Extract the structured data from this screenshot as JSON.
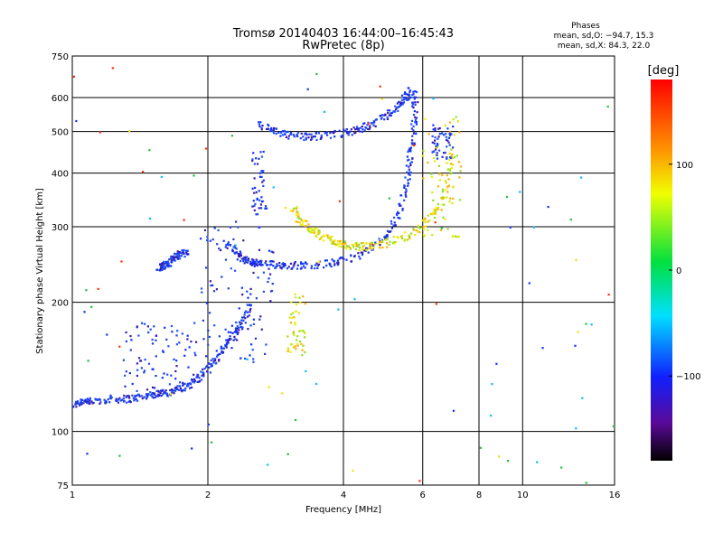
{
  "chart_data": {
    "type": "scatter",
    "title": "Tromsø 20140403 16:44:00–16:45:43",
    "subtitle": "RwPretec (8p)",
    "xlabel": "Frequency [MHz]",
    "ylabel": "Stationary phase Virtual Height [km]",
    "x_scale": "log",
    "y_scale": "log",
    "xlim": [
      1,
      16
    ],
    "ylim": [
      75,
      750
    ],
    "x_ticks": [
      1,
      2,
      4,
      6,
      8,
      10,
      16
    ],
    "x_tick_labels": [
      "1",
      "2",
      "4",
      "6",
      "8",
      "10",
      "16"
    ],
    "y_ticks": [
      75,
      100,
      200,
      300,
      400,
      500,
      600,
      750
    ],
    "y_tick_labels": [
      "75",
      "100",
      "200",
      "300",
      "400",
      "500",
      "600",
      "750"
    ],
    "grid": true,
    "phase_box": {
      "title": "Phases",
      "line_o": "mean, sd,O: −94.7, 15.3",
      "line_x": "mean, sd,X:  84.3, 22.0"
    },
    "colorbar": {
      "label": "[deg]",
      "range": [
        -180,
        180
      ],
      "ticks": [
        100,
        0,
        -100
      ],
      "tick_labels": [
        "100",
        "0",
        "−100"
      ]
    },
    "traces": [
      {
        "x": [
          1.0,
          1.05,
          1.1,
          1.2,
          1.3,
          1.4,
          1.5,
          1.6,
          1.7,
          1.8,
          1.9,
          2.0,
          2.1,
          2.2,
          2.3,
          2.4,
          2.5
        ],
        "y": [
          115,
          118,
          117,
          119,
          119,
          120,
          122,
          123,
          125,
          128,
          133,
          140,
          150,
          160,
          170,
          180,
          200
        ],
        "phase": -105
      },
      {
        "x": [
          2.2,
          2.3,
          2.4,
          2.5,
          2.6,
          2.8,
          3.0,
          3.3,
          3.7,
          4.0,
          4.5,
          5.0,
          5.3,
          5.5,
          5.6,
          5.7,
          5.75,
          5.8
        ],
        "y": [
          275,
          262,
          252,
          248,
          246,
          245,
          244,
          244,
          246,
          250,
          262,
          285,
          320,
          370,
          420,
          480,
          550,
          620
        ],
        "phase": -110
      },
      {
        "x": [
          3.1,
          3.2,
          3.4,
          3.6,
          3.8,
          4.0,
          4.3,
          4.6,
          5.0,
          5.5,
          6.0,
          6.5,
          6.8,
          7.0
        ],
        "y": [
          330,
          310,
          295,
          285,
          278,
          272,
          270,
          270,
          275,
          285,
          300,
          330,
          380,
          450
        ],
        "phase": 75
      },
      {
        "x": [
          2.6,
          2.8,
          3.0,
          3.3,
          3.6,
          4.0,
          4.3,
          4.6,
          5.0,
          5.3,
          5.5,
          5.7
        ],
        "y": [
          520,
          500,
          490,
          487,
          488,
          495,
          505,
          520,
          545,
          575,
          600,
          630
        ],
        "phase": -100
      },
      {
        "x": [
          1.55,
          1.6,
          1.65,
          1.7,
          1.75,
          1.8
        ],
        "y": [
          240,
          243,
          248,
          255,
          260,
          262
        ],
        "phase": -100
      }
    ],
    "clouds": [
      {
        "x_range": [
          1.9,
          2.8
        ],
        "y_range": [
          145,
          300
        ],
        "phase": -100
      },
      {
        "x_range": [
          3.0,
          3.3
        ],
        "y_range": [
          150,
          210
        ],
        "phase": 80
      },
      {
        "x_range": [
          2.5,
          2.7
        ],
        "y_range": [
          320,
          450
        ],
        "phase": -100
      },
      {
        "x_range": [
          6.0,
          7.3
        ],
        "y_range": [
          280,
          560
        ],
        "phase": 70
      },
      {
        "x_range": [
          6.3,
          7.0
        ],
        "y_range": [
          430,
          520
        ],
        "phase": -110
      },
      {
        "x_range": [
          1.3,
          1.9
        ],
        "y_range": [
          120,
          180
        ],
        "phase": -100
      }
    ]
  }
}
